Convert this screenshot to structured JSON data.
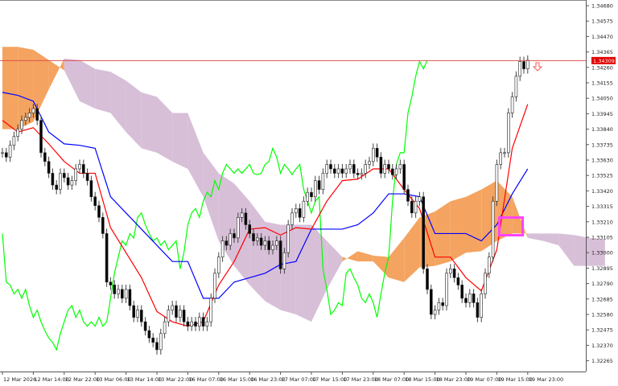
{
  "chart_data": {
    "type": "candlestick",
    "timeframe": "H1",
    "indicator": "Ichimoku Kinko Hyo",
    "ylim": [
      1.3218,
      1.3472
    ],
    "grid": false,
    "current_price": "1.34309",
    "y_ticks": [
      "1.34680",
      "1.34575",
      "1.34470",
      "1.34365",
      "1.34260",
      "1.34155",
      "1.34050",
      "1.33945",
      "1.33840",
      "1.33735",
      "1.33630",
      "1.33525",
      "1.33420",
      "1.33315",
      "1.33210",
      "1.33105",
      "1.33000",
      "1.32895",
      "1.32790",
      "1.32685",
      "1.32580",
      "1.32475",
      "1.32370",
      "1.32265"
    ],
    "x_ticks": [
      "12 Mar 2026",
      "12 Mar 14:00",
      "12 Mar 22:00",
      "13 Mar 06:00",
      "13 Mar 14:00",
      "13 Mar 22:00",
      "16 Mar 07:00",
      "16 Mar 15:00",
      "16 Mar 23:00",
      "17 Mar 07:00",
      "17 Mar 15:00",
      "17 Mar 23:00",
      "18 Mar 07:00",
      "18 Mar 15:00",
      "18 Mar 23:00",
      "19 Mar 07:00",
      "19 Mar 15:00",
      "19 Mar 23:00"
    ],
    "close": [
      1.3368,
      1.3365,
      1.3373,
      1.3379,
      1.3384,
      1.339,
      1.3392,
      1.3395,
      1.3398,
      1.339,
      1.3368,
      1.3362,
      1.3354,
      1.3346,
      1.3343,
      1.3354,
      1.3351,
      1.3346,
      1.3349,
      1.3357,
      1.336,
      1.3354,
      1.3349,
      1.3338,
      1.3332,
      1.3324,
      1.3313,
      1.328,
      1.3278,
      1.3272,
      1.3275,
      1.3269,
      1.3275,
      1.3264,
      1.3256,
      1.3261,
      1.3253,
      1.3247,
      1.3242,
      1.3239,
      1.3234,
      1.3245,
      1.3253,
      1.3261,
      1.3264,
      1.3256,
      1.3261,
      1.3253,
      1.325,
      1.3253,
      1.325,
      1.3256,
      1.325,
      1.3253,
      1.3269,
      1.3286,
      1.3297,
      1.3308,
      1.3305,
      1.3313,
      1.331,
      1.3324,
      1.3327,
      1.3319,
      1.3313,
      1.3308,
      1.331,
      1.3305,
      1.3308,
      1.3302,
      1.3305,
      1.3308,
      1.3289,
      1.33,
      1.3319,
      1.3327,
      1.333,
      1.3324,
      1.3335,
      1.3341,
      1.3338,
      1.3349,
      1.3343,
      1.3354,
      1.336,
      1.3357,
      1.3354,
      1.3357,
      1.3354,
      1.3357,
      1.336,
      1.3354,
      1.3353,
      1.3354,
      1.336,
      1.3362,
      1.3371,
      1.3365,
      1.3354,
      1.336,
      1.3357,
      1.3353,
      1.3357,
      1.336,
      1.3343,
      1.3335,
      1.3327,
      1.3335,
      1.3338,
      1.3289,
      1.3275,
      1.3258,
      1.3261,
      1.3266,
      1.3264,
      1.3286,
      1.3289,
      1.3283,
      1.3278,
      1.3269,
      1.3266,
      1.3272,
      1.3266,
      1.3256,
      1.3272,
      1.3286,
      1.3297,
      1.3335,
      1.336,
      1.3368,
      1.3368,
      1.3395,
      1.3406,
      1.342,
      1.343,
      1.3425,
      1.34309
    ],
    "line_sample_every_bars": 4,
    "chikou_shift_bars": 26,
    "tenkan_sen": [
      1.339,
      1.3382,
      1.3385,
      1.3374,
      1.3362,
      1.3354,
      1.3354,
      1.3317,
      1.33,
      1.3283,
      1.326,
      1.3253,
      1.325,
      1.3253,
      1.3278,
      1.3294,
      1.3316,
      1.3317,
      1.3312,
      1.3317,
      1.3316,
      1.3335,
      1.3349,
      1.335,
      1.3357,
      1.3357,
      1.3343,
      1.333,
      1.3297,
      1.3297,
      1.3283,
      1.3274,
      1.3302,
      1.3371,
      1.3401
    ],
    "kijun_sen": [
      1.3409,
      1.3407,
      1.3403,
      1.3382,
      1.3374,
      1.3373,
      1.3371,
      1.3338,
      1.3327,
      1.3316,
      1.3305,
      1.3294,
      1.3294,
      1.3269,
      1.3269,
      1.328,
      1.3283,
      1.3286,
      1.3292,
      1.3294,
      1.3316,
      1.3316,
      1.3316,
      1.3319,
      1.3327,
      1.334,
      1.334,
      1.3338,
      1.3313,
      1.3313,
      1.3313,
      1.3308,
      1.3319,
      1.334,
      1.3357
    ],
    "senkou_span_a": [
      1.344,
      1.344,
      1.3438,
      1.3431,
      1.3424,
      1.3403,
      1.3398,
      1.3395,
      1.3382,
      1.3371,
      1.3368,
      1.3362,
      1.3357,
      1.3338,
      1.3308,
      1.3291,
      1.3278,
      1.3267,
      1.3261,
      1.3258,
      1.3253,
      1.3275,
      1.3294,
      1.3301,
      1.3298,
      1.3297,
      1.331,
      1.3324,
      1.3328,
      1.3335,
      1.3338,
      1.3343,
      1.3349,
      1.3338,
      1.331,
      1.3308,
      1.3305,
      1.3291,
      1.3291,
      1.3291
    ],
    "senkou_span_b": [
      1.3384,
      1.3384,
      1.3389,
      1.3411,
      1.3432,
      1.3431,
      1.3425,
      1.3423,
      1.3417,
      1.3409,
      1.3406,
      1.3395,
      1.3395,
      1.3368,
      1.3354,
      1.3347,
      1.3335,
      1.3321,
      1.3319,
      1.3319,
      1.3319,
      1.3308,
      1.3297,
      1.3294,
      1.3294,
      1.3283,
      1.328,
      1.329,
      1.3291,
      1.3294,
      1.33,
      1.3301,
      1.3308,
      1.3313,
      1.3313,
      1.3313,
      1.3313,
      1.3312,
      1.331,
      1.3309
    ],
    "colors": {
      "bull_candle": "#ffffff",
      "bear_candle": "#000000",
      "tenkan_sen": "#ff0000",
      "kijun_sen": "#0000ff",
      "chikou_span": "#00ff00",
      "cloud_bullish": "#f4a460",
      "cloud_bearish": "#d8bfd8",
      "price_line": "#e05050",
      "price_label_bg": "#e00000",
      "rectangle_object": "#ff44ff",
      "sell_arrow": "#ff5a5a"
    }
  }
}
